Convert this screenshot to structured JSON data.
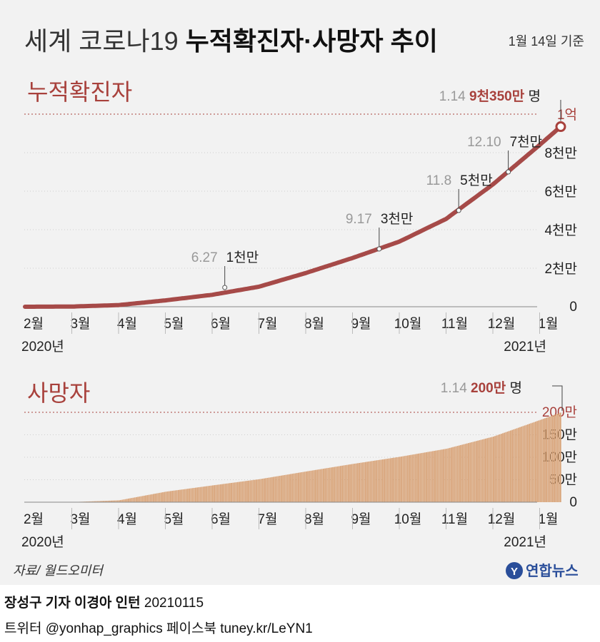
{
  "title": {
    "light": "세계 코로나19",
    "bold": "누적확진자·사망자 추이"
  },
  "date_note": "1월 14일 기준",
  "source": "자료/ 월드오미터",
  "logo": {
    "text": "연합뉴스",
    "mark": "Y"
  },
  "credit": {
    "reporters": "장성구 기자  이경아 인턴",
    "date": "20210115",
    "sns": "트위터 @yonhap_graphics  페이스북 tuney.kr/LeYN1"
  },
  "colors": {
    "line": "#a64a48",
    "bar": "#d8a276",
    "highlight": "#a8413c",
    "grid": "#cfcfcf",
    "muted": "#999999"
  },
  "chart_data": [
    {
      "type": "line",
      "title": "누적확진자",
      "months": [
        "2월",
        "3월",
        "4월",
        "5월",
        "6월",
        "7월",
        "8월",
        "9월",
        "10월",
        "11월",
        "12월",
        "1월"
      ],
      "year_start": "2020년",
      "year_end": "2021년",
      "ylim": [
        0,
        100000000
      ],
      "yticks": [
        {
          "value": 0,
          "label": "0"
        },
        {
          "value": 20000000,
          "label": "2천만"
        },
        {
          "value": 40000000,
          "label": "4천만"
        },
        {
          "value": 60000000,
          "label": "6천만"
        },
        {
          "value": 80000000,
          "label": "8천만"
        },
        {
          "value": 100000000,
          "label": "1억"
        }
      ],
      "points": [
        {
          "m": 0,
          "v": 0
        },
        {
          "m": 1,
          "v": 90000
        },
        {
          "m": 2,
          "v": 860000
        },
        {
          "m": 3,
          "v": 3300000
        },
        {
          "m": 4,
          "v": 6200000
        },
        {
          "m": 5,
          "v": 10400000
        },
        {
          "m": 6,
          "v": 17500000
        },
        {
          "m": 7,
          "v": 25300000
        },
        {
          "m": 8,
          "v": 33800000
        },
        {
          "m": 9,
          "v": 45600000
        },
        {
          "m": 10,
          "v": 63500000
        },
        {
          "m": 11,
          "v": 84000000
        },
        {
          "m": 11.45,
          "v": 93500000
        }
      ],
      "milestones": [
        {
          "m": 4.27,
          "v": 10000000,
          "date": "6.27",
          "label": "1천만"
        },
        {
          "m": 7.57,
          "v": 30000000,
          "date": "9.17",
          "label": "3천만"
        },
        {
          "m": 9.27,
          "v": 50000000,
          "date": "11.8",
          "label": "5천만"
        },
        {
          "m": 10.33,
          "v": 70000000,
          "date": "12.10",
          "label": "7천만"
        }
      ],
      "latest": {
        "m": 11.45,
        "v": 93500000,
        "date": "1.14",
        "value": "9천350만",
        "unit": "명"
      }
    },
    {
      "type": "bar",
      "title": "사망자",
      "months": [
        "2월",
        "3월",
        "4월",
        "5월",
        "6월",
        "7월",
        "8월",
        "9월",
        "10월",
        "11월",
        "12월",
        "1월"
      ],
      "year_start": "2020년",
      "year_end": "2021년",
      "ylim": [
        0,
        2000000
      ],
      "yticks": [
        {
          "value": 0,
          "label": "0"
        },
        {
          "value": 500000,
          "label": "50만"
        },
        {
          "value": 1000000,
          "label": "100만"
        },
        {
          "value": 1500000,
          "label": "150만"
        },
        {
          "value": 2000000,
          "label": "200만"
        }
      ],
      "points": [
        {
          "m": 0,
          "v": 0
        },
        {
          "m": 1,
          "v": 3000
        },
        {
          "m": 2,
          "v": 42000
        },
        {
          "m": 3,
          "v": 234000
        },
        {
          "m": 4,
          "v": 374000
        },
        {
          "m": 5,
          "v": 512000
        },
        {
          "m": 6,
          "v": 684000
        },
        {
          "m": 7,
          "v": 852000
        },
        {
          "m": 8,
          "v": 1010000
        },
        {
          "m": 9,
          "v": 1190000
        },
        {
          "m": 10,
          "v": 1460000
        },
        {
          "m": 11,
          "v": 1830000
        },
        {
          "m": 11.45,
          "v": 2000000
        }
      ],
      "latest": {
        "m": 11.45,
        "v": 2000000,
        "date": "1.14",
        "value": "200만",
        "unit": "명"
      }
    }
  ]
}
